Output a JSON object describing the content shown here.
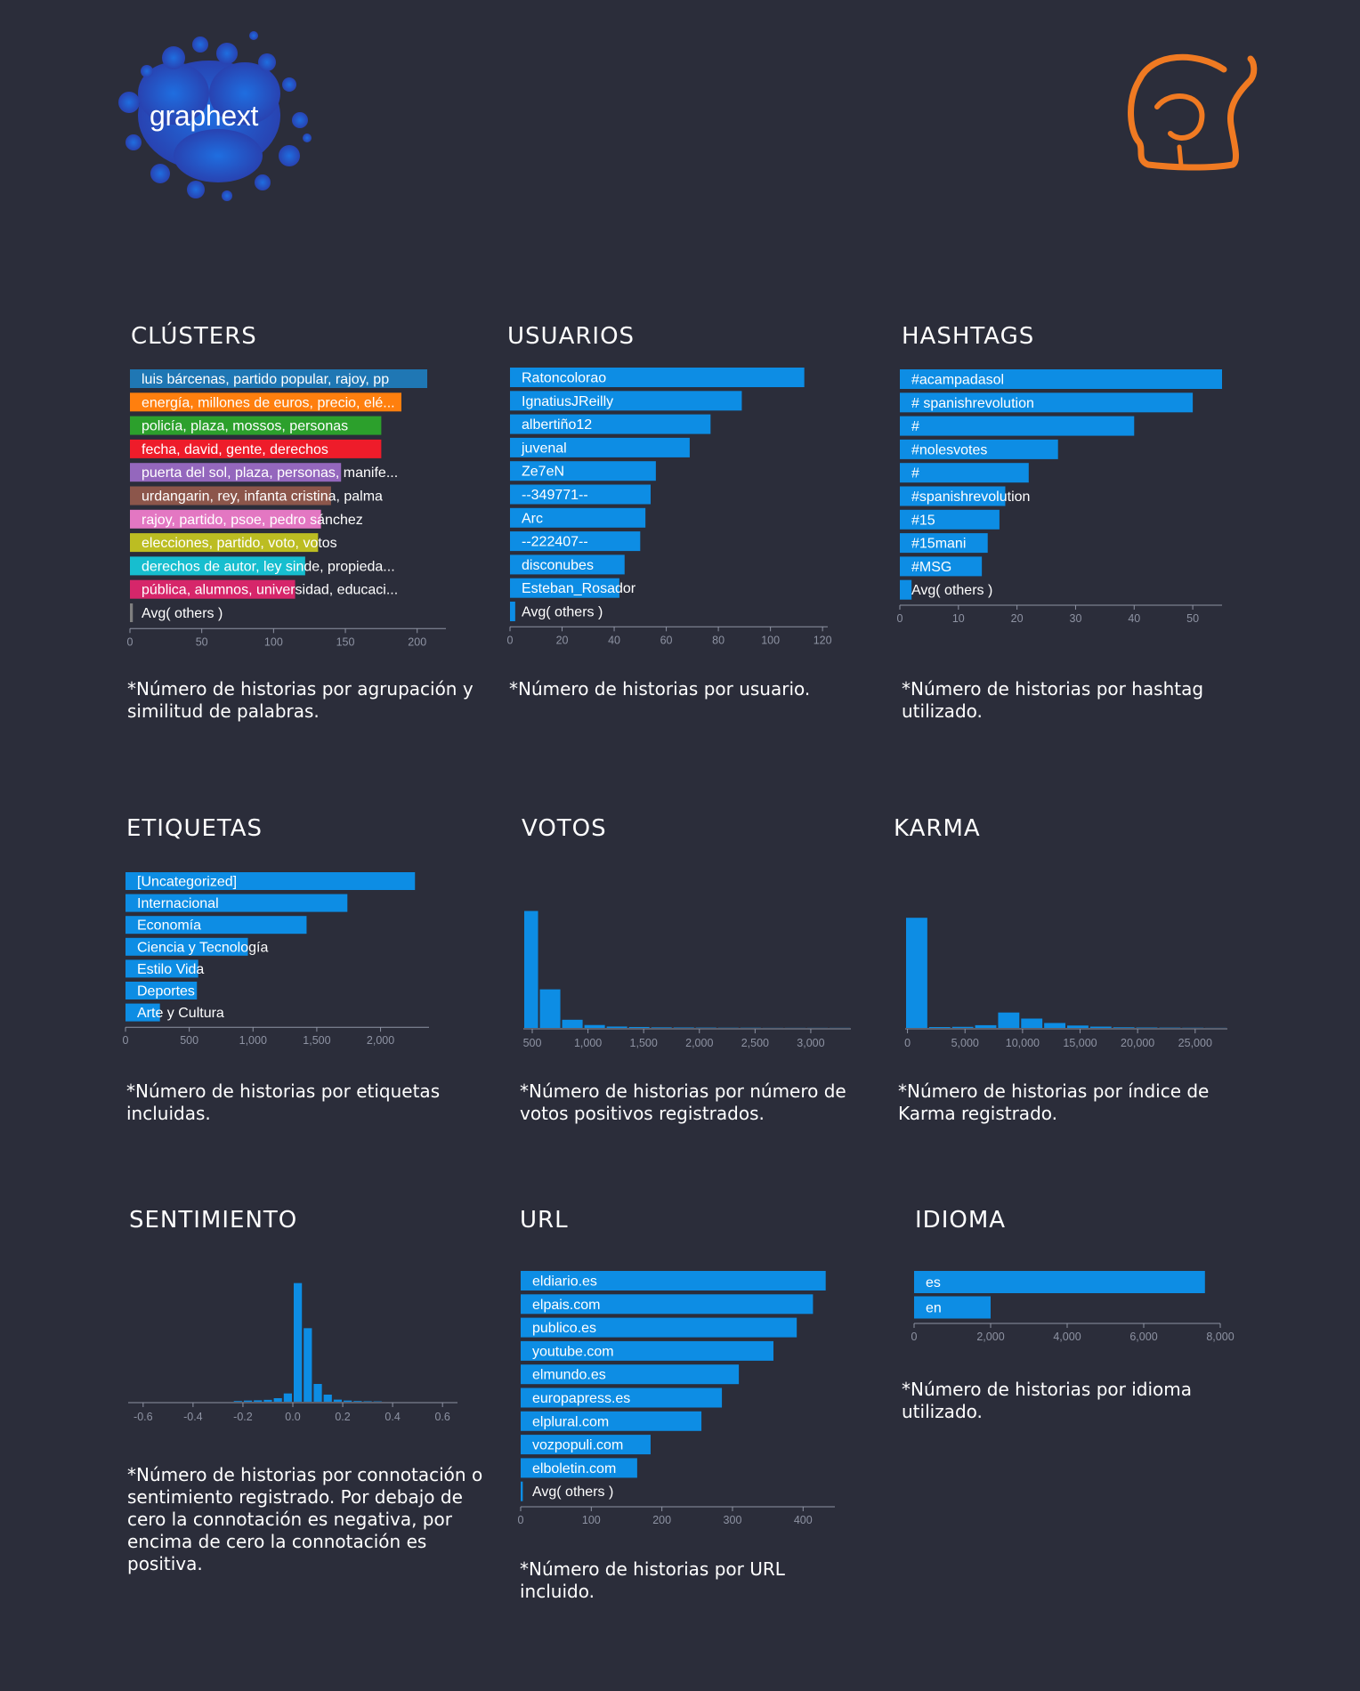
{
  "brand": {
    "name": "graphext"
  },
  "colors": {
    "background": "#2b2d3a",
    "bar": "#0d8de4",
    "axis": "#8e93a3",
    "logo_orange": "#f07a22"
  },
  "panels": {
    "clusters": {
      "title": "CLÚSTERS",
      "caption": "*Número de historias por agrupación y similitud de palabras."
    },
    "usuarios": {
      "title": "USUARIOS",
      "caption": "*Número de historias por usuario."
    },
    "hashtags": {
      "title": "HASHTAGS",
      "caption": "*Número de historias por hashtag utilizado."
    },
    "etiquetas": {
      "title": "ETIQUETAS",
      "caption": "*Número de historias por etiquetas incluidas."
    },
    "votos": {
      "title": "VOTOS",
      "caption": "*Número de historias por número de votos positivos registrados."
    },
    "karma": {
      "title": "KARMA",
      "caption": "*Número de historias por índice de Karma registrado."
    },
    "sentimiento": {
      "title": "SENTIMIENTO",
      "caption": "*Número de historias por connotación o sentimiento registrado. Por debajo de cero la connotación es negativa, por encima de cero la connotación es positiva."
    },
    "url": {
      "title": "URL",
      "caption": "*Número de historias por URL incluido."
    },
    "idioma": {
      "title": "IDIOMA",
      "caption": "*Número de historias por idioma utilizado."
    }
  },
  "chart_data": [
    {
      "id": "clusters",
      "type": "bar",
      "orientation": "horizontal",
      "categories": [
        "luis bárcenas, partido popular, rajoy, pp",
        "energía, millones de euros, precio, elé...",
        "policía, plaza, mossos, personas",
        "fecha, david, gente, derechos",
        "puerta del sol, plaza, personas, manife...",
        "urdangarin, rey, infanta cristina, palma",
        "rajoy, partido, psoe, pedro sánchez",
        "elecciones, partido, voto, votos",
        "derechos de autor, ley sinde, propieda...",
        "pública, alumnos, universidad, educaci...",
        "Avg( others )"
      ],
      "values": [
        207,
        189,
        175,
        175,
        147,
        140,
        133,
        131,
        122,
        115,
        2
      ],
      "colors": [
        "#1f77b4",
        "#ff7f0e",
        "#2ca02c",
        "#ee1c2a",
        "#9467bd",
        "#8c564b",
        "#e377c2",
        "#bcbd22",
        "#17becf",
        "#d6266a",
        "#7f7f7f"
      ],
      "xlim": [
        0,
        220
      ],
      "xticks": [
        0,
        50,
        100,
        150,
        200
      ]
    },
    {
      "id": "usuarios",
      "type": "bar",
      "orientation": "horizontal",
      "categories": [
        "Ratoncolorao",
        "IgnatiusJReilly",
        "albertiño12",
        "juvenal",
        "Ze7eN",
        "--349771--",
        "Arc",
        "--222407--",
        "disconubes",
        "Esteban_Rosador",
        "Avg( others )"
      ],
      "values": [
        113,
        89,
        77,
        69,
        56,
        54,
        52,
        50,
        44,
        42,
        2
      ],
      "xlim": [
        0,
        122
      ],
      "xticks": [
        0,
        20,
        40,
        60,
        80,
        100,
        120
      ]
    },
    {
      "id": "hashtags",
      "type": "bar",
      "orientation": "horizontal",
      "categories": [
        "#acampadasol",
        "# spanishrevolution",
        "#",
        "#nolesvotes",
        "#",
        "#spanishrevolution",
        "#15",
        "#15mani",
        "#MSG",
        "Avg( others )"
      ],
      "values": [
        55,
        50,
        40,
        27,
        22,
        18,
        17,
        15,
        14,
        2
      ],
      "xlim": [
        0,
        55
      ],
      "xticks": [
        0,
        10,
        20,
        30,
        40,
        50
      ]
    },
    {
      "id": "etiquetas",
      "type": "bar",
      "orientation": "horizontal",
      "categories": [
        "[Uncategorized]",
        "Internacional",
        "Economía",
        "Ciencia y Tecnología",
        "Estilo Vida",
        "Deportes",
        "Arte y Cultura"
      ],
      "values": [
        2270,
        1740,
        1420,
        960,
        570,
        560,
        270
      ],
      "xlim": [
        0,
        2380
      ],
      "xticks": [
        0,
        500,
        1000,
        1500,
        2000
      ],
      "xtick_labels": [
        "0",
        "500",
        "1,000",
        "1,500",
        "2,000"
      ]
    },
    {
      "id": "votos",
      "type": "bar",
      "subtype": "histogram",
      "bins": [
        [
          420,
          560
        ],
        [
          560,
          760
        ],
        [
          760,
          960
        ],
        [
          960,
          1160
        ],
        [
          1160,
          1360
        ],
        [
          1360,
          1560
        ],
        [
          1560,
          1760
        ],
        [
          1760,
          1960
        ],
        [
          1960,
          2160
        ],
        [
          2160,
          2360
        ],
        [
          2360,
          2560
        ],
        [
          2560,
          2760
        ],
        [
          2760,
          2960
        ],
        [
          2960,
          3160
        ],
        [
          3160,
          3360
        ]
      ],
      "values": [
        1000,
        330,
        70,
        25,
        12,
        8,
        5,
        4,
        3,
        2,
        2,
        1,
        1,
        1,
        1
      ],
      "xlim": [
        420,
        3360
      ],
      "ylim": [
        0,
        1050
      ],
      "xticks": [
        500,
        1000,
        1500,
        2000,
        2500,
        3000
      ],
      "xtick_labels": [
        "500",
        "1,000",
        "1,500",
        "2,000",
        "2,500",
        "3,000"
      ]
    },
    {
      "id": "karma",
      "type": "bar",
      "subtype": "histogram",
      "bins": [
        [
          -200,
          1800
        ],
        [
          1800,
          3800
        ],
        [
          3800,
          5800
        ],
        [
          5800,
          7800
        ],
        [
          7800,
          9800
        ],
        [
          9800,
          11800
        ],
        [
          11800,
          13800
        ],
        [
          13800,
          15800
        ],
        [
          15800,
          17800
        ],
        [
          17800,
          19800
        ],
        [
          19800,
          21800
        ],
        [
          21800,
          23800
        ],
        [
          23800,
          25800
        ],
        [
          25800,
          27800
        ]
      ],
      "values": [
        1000,
        8,
        10,
        25,
        140,
        85,
        45,
        22,
        12,
        6,
        4,
        3,
        2,
        1
      ],
      "xlim": [
        -200,
        27800
      ],
      "ylim": [
        0,
        1050
      ],
      "xticks": [
        0,
        5000,
        10000,
        15000,
        20000,
        25000
      ],
      "xtick_labels": [
        "0",
        "5,000",
        "10,000",
        "15,000",
        "20,000",
        "25,000"
      ]
    },
    {
      "id": "sentimiento",
      "type": "bar",
      "subtype": "histogram",
      "bins": [
        [
          -0.24,
          -0.2
        ],
        [
          -0.2,
          -0.16
        ],
        [
          -0.16,
          -0.12
        ],
        [
          -0.12,
          -0.08
        ],
        [
          -0.08,
          -0.04
        ],
        [
          -0.04,
          0
        ],
        [
          0,
          0.04
        ],
        [
          0.04,
          0.08
        ],
        [
          0.08,
          0.12
        ],
        [
          0.12,
          0.16
        ],
        [
          0.16,
          0.2
        ],
        [
          0.2,
          0.24
        ],
        [
          0.24,
          0.28
        ],
        [
          0.28,
          0.32
        ],
        [
          0.32,
          0.36
        ]
      ],
      "values": [
        6,
        10,
        12,
        16,
        30,
        70,
        1000,
        620,
        150,
        60,
        18,
        10,
        6,
        4,
        3
      ],
      "xlim": [
        -0.66,
        0.66
      ],
      "ylim": [
        0,
        1050
      ],
      "xticks": [
        -0.6,
        -0.4,
        -0.2,
        0.0,
        0.2,
        0.4,
        0.6
      ],
      "xtick_labels": [
        "-0.6",
        "-0.4",
        "-0.2",
        "0.0",
        "0.2",
        "0.4",
        "0.6"
      ]
    },
    {
      "id": "url",
      "type": "bar",
      "orientation": "horizontal",
      "categories": [
        "eldiario.es",
        "elpais.com",
        "publico.es",
        "youtube.com",
        "elmundo.es",
        "europapress.es",
        "elplural.com",
        "vozpopuli.com",
        "elboletin.com",
        "Avg( others )"
      ],
      "values": [
        432,
        414,
        391,
        358,
        309,
        285,
        256,
        184,
        165,
        3
      ],
      "xlim": [
        0,
        445
      ],
      "xticks": [
        0,
        100,
        200,
        300,
        400
      ]
    },
    {
      "id": "idioma",
      "type": "bar",
      "orientation": "horizontal",
      "categories": [
        "es",
        "en"
      ],
      "values": [
        7600,
        2000
      ],
      "xlim": [
        0,
        8000
      ],
      "xticks": [
        0,
        2000,
        4000,
        6000,
        8000
      ],
      "xtick_labels": [
        "0",
        "2,000",
        "4,000",
        "6,000",
        "8,000"
      ]
    }
  ]
}
